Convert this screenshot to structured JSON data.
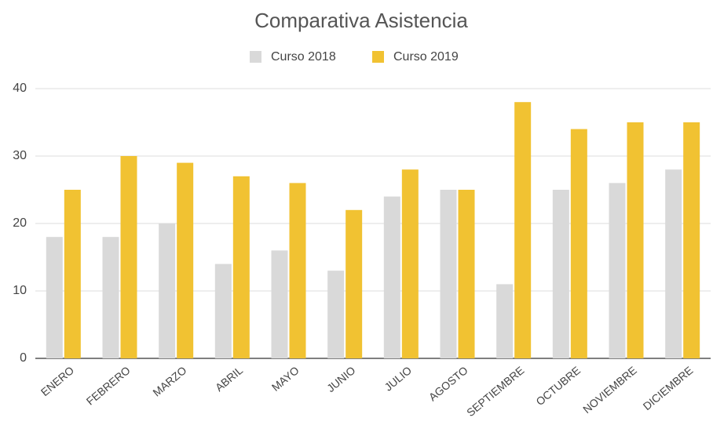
{
  "chart_data": {
    "type": "bar",
    "title": "Comparativa Asistencia",
    "categories": [
      "ENERO",
      "FEBRERO",
      "MARZO",
      "ABRIL",
      "MAYO",
      "JUNIO",
      "JULIO",
      "AGOSTO",
      "SEPTIEMBRE",
      "OCTUBRE",
      "NOVIEMBRE",
      "DICIEMBRE"
    ],
    "series": [
      {
        "name": "Curso 2018",
        "color": "#d9d9d9",
        "values": [
          18,
          18,
          20,
          14,
          16,
          13,
          24,
          25,
          11,
          25,
          26,
          28
        ]
      },
      {
        "name": "Curso 2019",
        "color": "#f1c232",
        "values": [
          25,
          30,
          29,
          27,
          26,
          22,
          28,
          25,
          38,
          34,
          35,
          35
        ]
      }
    ],
    "ylim": [
      0,
      40
    ],
    "yticks": [
      0,
      10,
      20,
      30,
      40
    ],
    "grid": true,
    "legend": "top"
  }
}
